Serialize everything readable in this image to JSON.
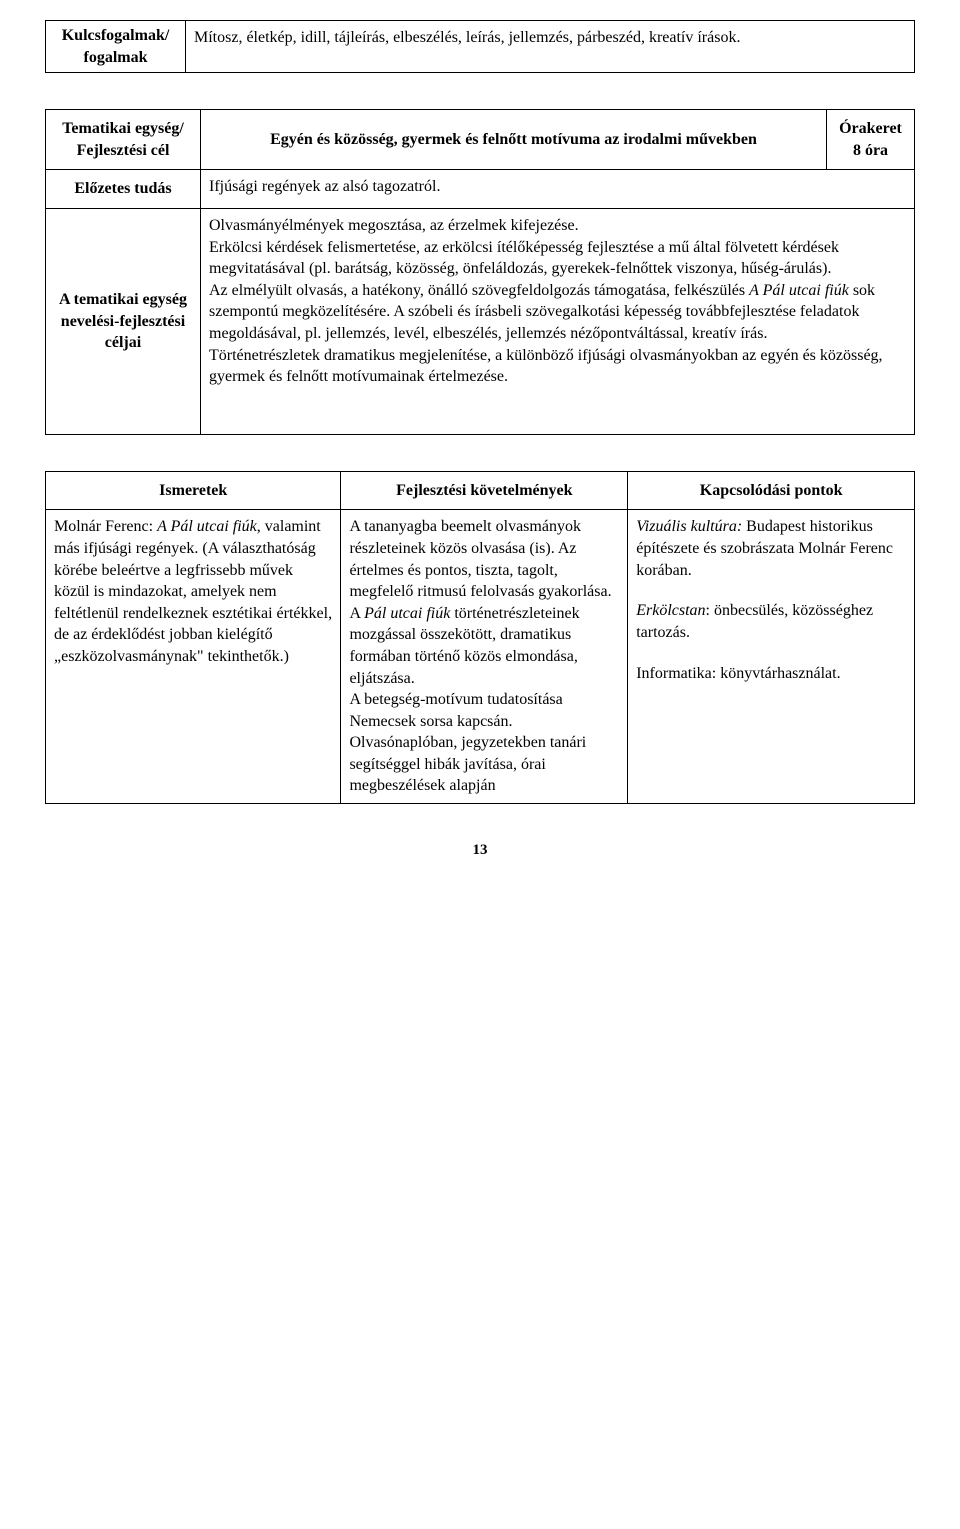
{
  "table1": {
    "label": "Kulcsfogalmak/ fogalmak",
    "content": "Mítosz, életkép, idill, tájleírás, elbeszélés, leírás, jellemzés, párbeszéd, kreatív írások."
  },
  "table2": {
    "row1": {
      "label": "Tematikai egység/ Fejlesztési cél",
      "topic": "Egyén és közösség, gyermek és felnőtt motívuma az irodalmi művekben",
      "hours_label": "Órakeret",
      "hours_value": "8 óra"
    },
    "row2": {
      "label": "Előzetes tudás",
      "content": "Ifjúsági regények az alsó tagozatról."
    },
    "row3": {
      "label": "A tematikai egység nevelési-fejlesztési céljai",
      "content_p1_a": "Olvasmányélmények megosztása,  az érzelmek kifejezése.",
      "content_p1_b": "Erkölcsi kérdések felismertetése, az erkölcsi ítélőképesség fejlesztése a mű által fölvetett kérdések megvitatásával (pl. barátság, közösség, önfeláldozás, gyerekek-felnőttek viszonya, hűség-árulás).",
      "content_p2_a": "Az elmélyült olvasás, a hatékony, önálló szövegfeldolgozás támogatása, felkészülés ",
      "content_p2_it": "A Pál utcai fiúk",
      "content_p2_b": " sok szempontú megközelítésére. A szóbeli és írásbeli szövegalkotási képesség továbbfejlesztése feladatok megoldásával, pl. jellemzés, levél, elbeszélés, jellemzés nézőpontváltással, kreatív írás.",
      "content_p3": "Történetrészletek dramatikus megjelenítése, a különböző ifjúsági olvasmányokban az egyén és közösség, gyermek és felnőtt motívumainak értelmezése."
    }
  },
  "table3": {
    "headers": {
      "c1": "Ismeretek",
      "c2": "Fejlesztési követelmények",
      "c3": "Kapcsolódási pontok"
    },
    "col1": {
      "p1_a": "Molnár Ferenc: ",
      "p1_it": "A Pál utcai fiúk",
      "p1_b": ", valamint más ifjúsági regények. (A választhatóság körébe beleértve a legfrissebb művek közül is mindazokat, amelyek nem feltétlenül rendelkeznek esztétikai értékkel, de az érdeklődést jobban kielégítő „eszközolvasmánynak\" tekinthetők.)"
    },
    "col2": {
      "p1": "A tananyagba beemelt olvasmányok részleteinek közös olvasása (is). Az értelmes és pontos, tiszta, tagolt, megfelelő ritmusú felolvasás gyakorlása.",
      "p2_a": "A ",
      "p2_it": "Pál utcai fiúk",
      "p2_b": " történetrészleteinek mozgással összekötött, dramatikus formában történő közös elmondása, eljátszása.",
      "p3": "A betegség-motívum tudatosítása Nemecsek sorsa kapcsán.",
      "p4": "Olvasónaplóban, jegyzetekben tanári segítséggel hibák javítása, órai megbeszélések alapján"
    },
    "col3": {
      "p1_it": "Vizuális kultúra:",
      "p1_b": " Budapest historikus építészete és szobrászata Molnár Ferenc korában.",
      "p2_it": "Erkölcstan",
      "p2_b": ": önbecsülés, közösséghez tartozás.",
      "p3_a": "Informatika: könyvtárhasználat."
    }
  },
  "page_number": "13"
}
